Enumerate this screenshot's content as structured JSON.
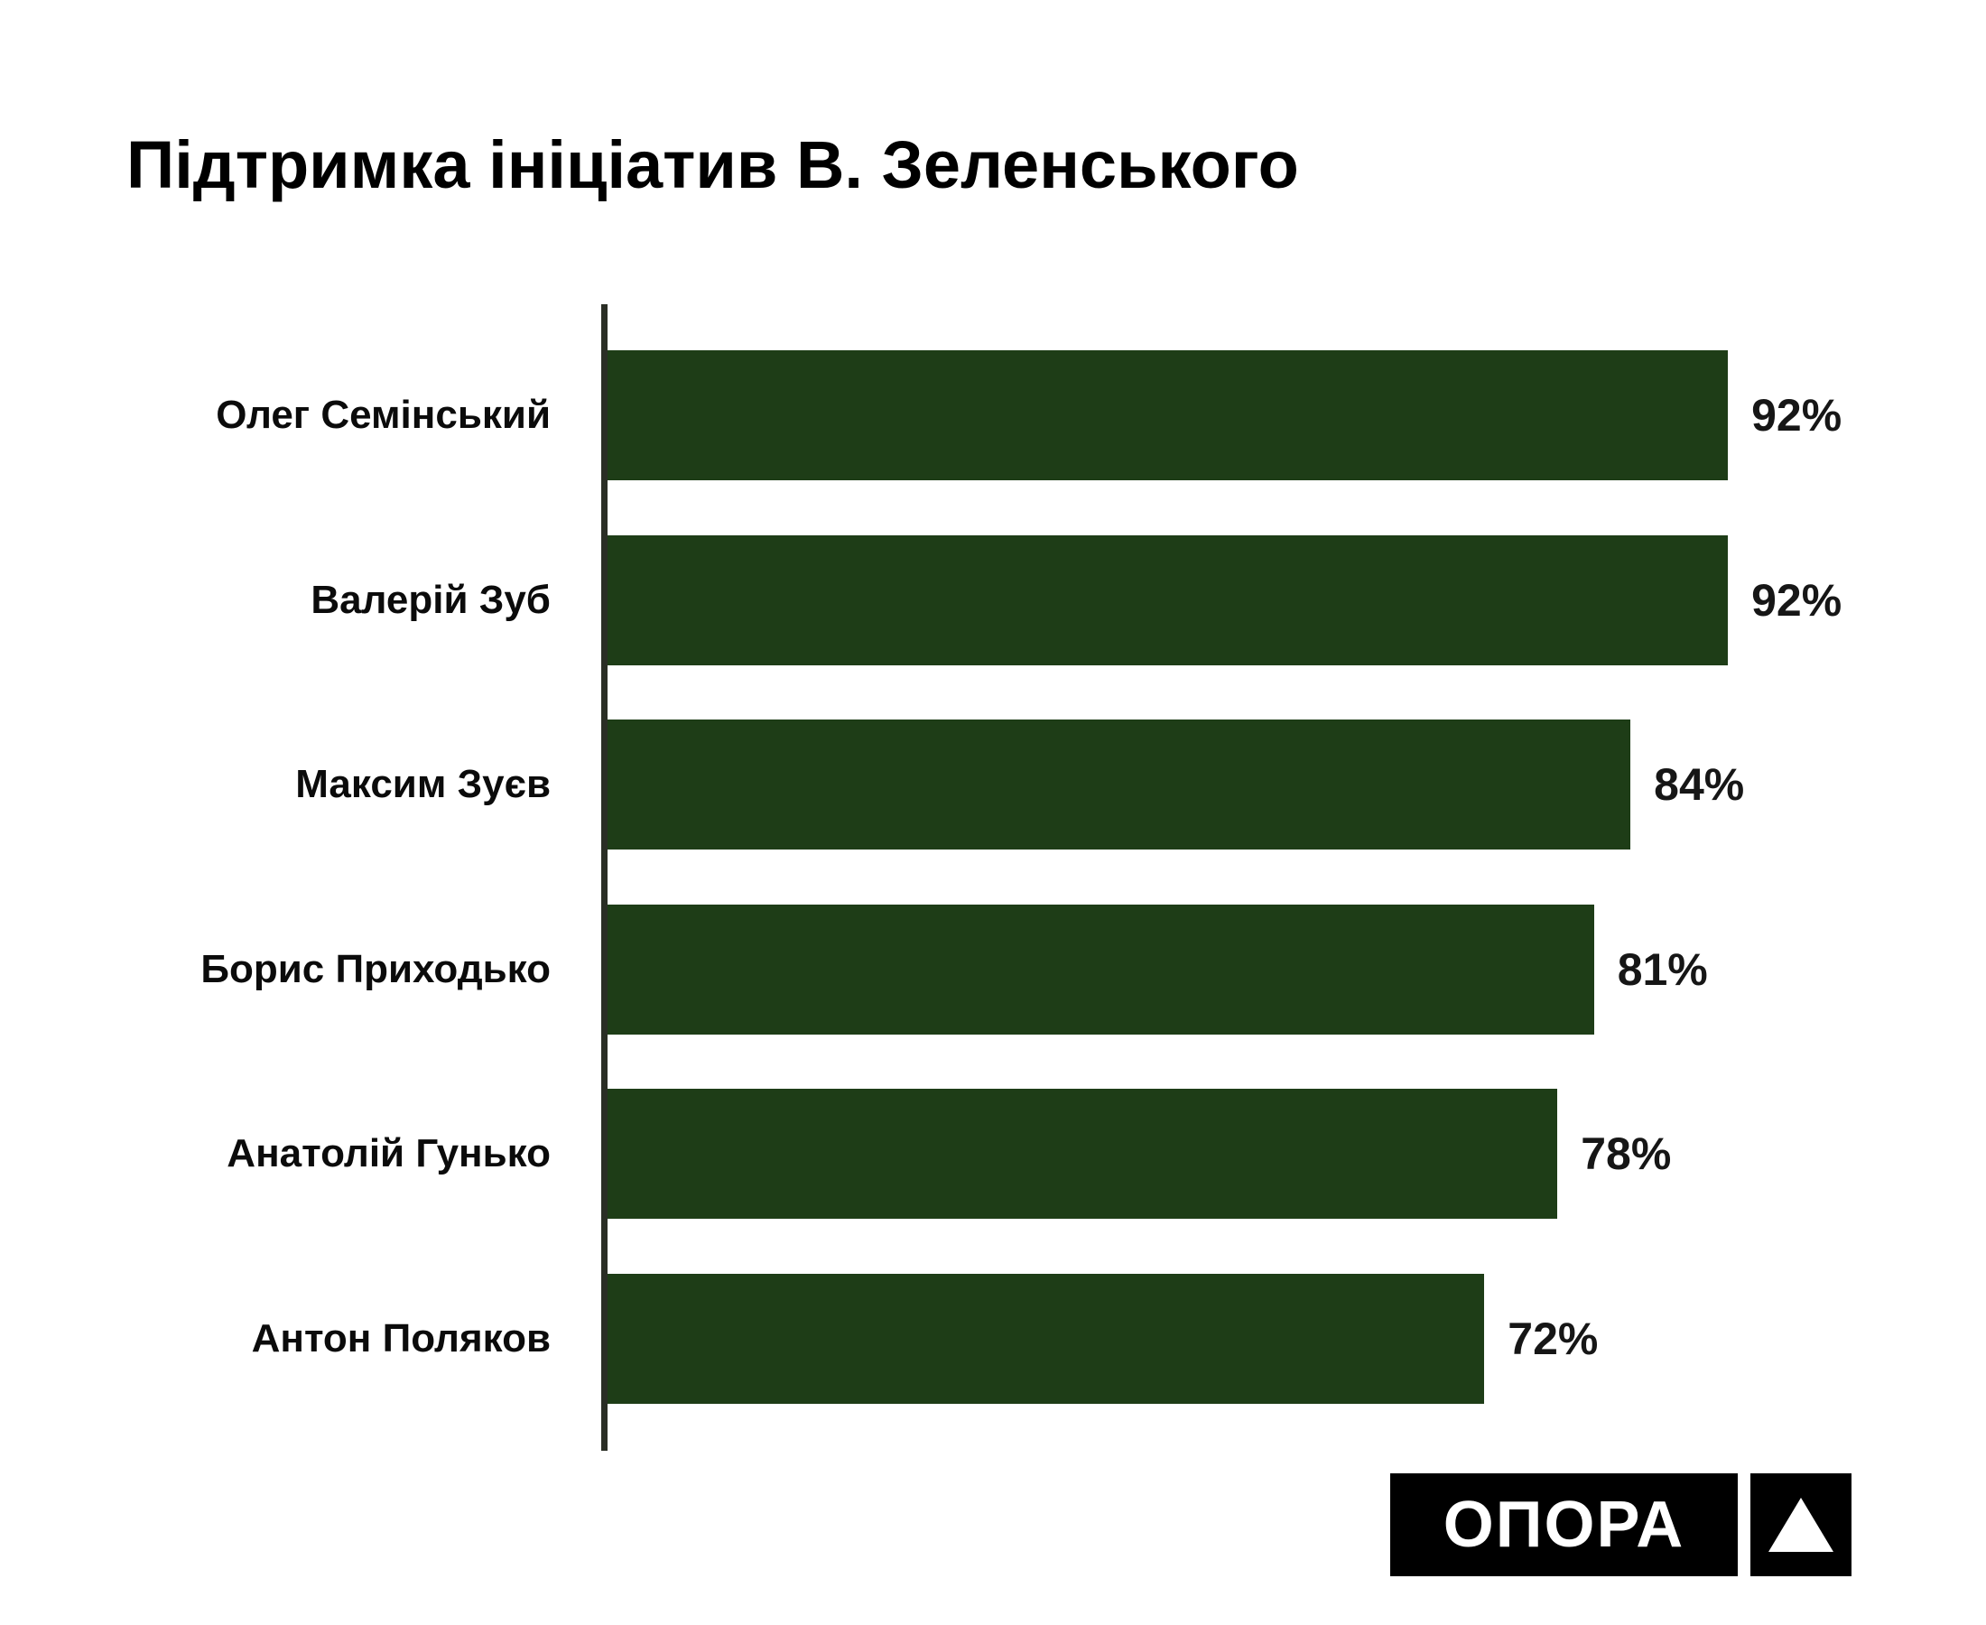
{
  "title": "Підтримка ініціатив В. Зеленського",
  "chart_data": {
    "type": "bar",
    "orientation": "horizontal",
    "title": "Підтримка ініціатив В. Зеленського",
    "categories": [
      "Олег Семінський",
      "Валерій Зуб",
      "Максим Зуєв",
      "Борис Приходько",
      "Анатолій Гунько",
      "Антон Поляков"
    ],
    "values": [
      92,
      92,
      84,
      81,
      78,
      72
    ],
    "value_labels": [
      "92%",
      "92%",
      "84%",
      "81%",
      "78%",
      "72%"
    ],
    "xlabel": "",
    "ylabel": "",
    "xlim": [
      0,
      100
    ],
    "grid": false,
    "legend": false,
    "bar_color": "#1e3d17",
    "axis_color": "#2a2e25",
    "label_color": "#0b0b0b"
  },
  "logo": {
    "text": "ОПОРА",
    "icon": "triangle-up-icon",
    "bg_color": "#000000",
    "fg_color": "#ffffff"
  }
}
